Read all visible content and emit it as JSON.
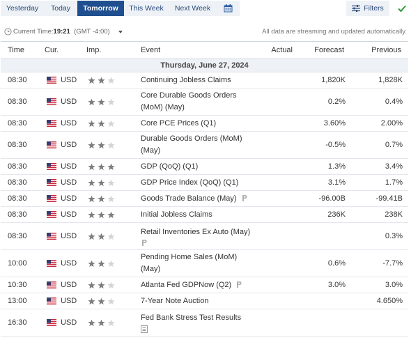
{
  "toolbar": {
    "tabs": [
      "Yesterday",
      "Today",
      "Tomorrow",
      "This Week",
      "Next Week"
    ],
    "active_tab": "Tomorrow",
    "calendar_icon": "calendar-icon",
    "filters_label": "Filters",
    "filters_icon": "sliders-icon",
    "check_icon": "check-icon"
  },
  "info": {
    "time_prefix": "Current Time:",
    "time_value": "19:21",
    "timezone": "(GMT -4:00)",
    "streaming_note": "All data are streaming and updated automatically."
  },
  "table": {
    "headers": {
      "time": "Time",
      "currency": "Cur.",
      "importance": "Imp.",
      "event": "Event",
      "actual": "Actual",
      "forecast": "Forecast",
      "previous": "Previous"
    },
    "date_label": "Thursday, June 27, 2024",
    "rows": [
      {
        "time": "08:30",
        "currency": "USD",
        "importance": 2,
        "event": "Continuing Jobless Claims",
        "actual": "",
        "forecast": "1,820K",
        "previous": "1,828K"
      },
      {
        "time": "08:30",
        "currency": "USD",
        "importance": 2,
        "event": "Core Durable Goods Orders (MoM) (May)",
        "actual": "",
        "forecast": "0.2%",
        "previous": "0.4%"
      },
      {
        "time": "08:30",
        "currency": "USD",
        "importance": 2,
        "event": "Core PCE Prices (Q1)",
        "actual": "",
        "forecast": "3.60%",
        "previous": "2.00%"
      },
      {
        "time": "08:30",
        "currency": "USD",
        "importance": 2,
        "event": "Durable Goods Orders (MoM) (May)",
        "actual": "",
        "forecast": "-0.5%",
        "previous": "0.7%"
      },
      {
        "time": "08:30",
        "currency": "USD",
        "importance": 3,
        "event": "GDP (QoQ) (Q1)",
        "actual": "",
        "forecast": "1.3%",
        "previous": "3.4%"
      },
      {
        "time": "08:30",
        "currency": "USD",
        "importance": 2,
        "event": "GDP Price Index (QoQ) (Q1)",
        "actual": "",
        "forecast": "3.1%",
        "previous": "1.7%"
      },
      {
        "time": "08:30",
        "currency": "USD",
        "importance": 2,
        "event": "Goods Trade Balance (May)",
        "actual": "",
        "forecast": "-96.00B",
        "previous": "-99.41B"
      },
      {
        "time": "08:30",
        "currency": "USD",
        "importance": 3,
        "event": "Initial Jobless Claims",
        "actual": "",
        "forecast": "236K",
        "previous": "238K"
      },
      {
        "time": "08:30",
        "currency": "USD",
        "importance": 2,
        "event": "Retail Inventories Ex Auto (May)",
        "actual": "",
        "forecast": "",
        "previous": "0.3%"
      },
      {
        "time": "10:00",
        "currency": "USD",
        "importance": 2,
        "event": "Pending Home Sales (MoM) (May)",
        "actual": "",
        "forecast": "0.6%",
        "previous": "-7.7%"
      },
      {
        "time": "10:30",
        "currency": "USD",
        "importance": 2,
        "event": "Atlanta Fed GDPNow (Q2)",
        "actual": "",
        "forecast": "3.0%",
        "previous": "3.0%"
      },
      {
        "time": "13:00",
        "currency": "USD",
        "importance": 2,
        "event": "7-Year Note Auction",
        "actual": "",
        "forecast": "",
        "previous": "4.650%"
      },
      {
        "time": "16:30",
        "currency": "USD",
        "importance": 2,
        "event": "Fed Bank Stress Test Results",
        "actual": "",
        "forecast": "",
        "previous": ""
      }
    ]
  },
  "colors": {
    "accent": "#1f4f8f",
    "star_on": "#7d7d7d",
    "star_off": "#d4d4d4",
    "check": "#2e9b3c",
    "date_row_bg": "#eef1f5"
  }
}
